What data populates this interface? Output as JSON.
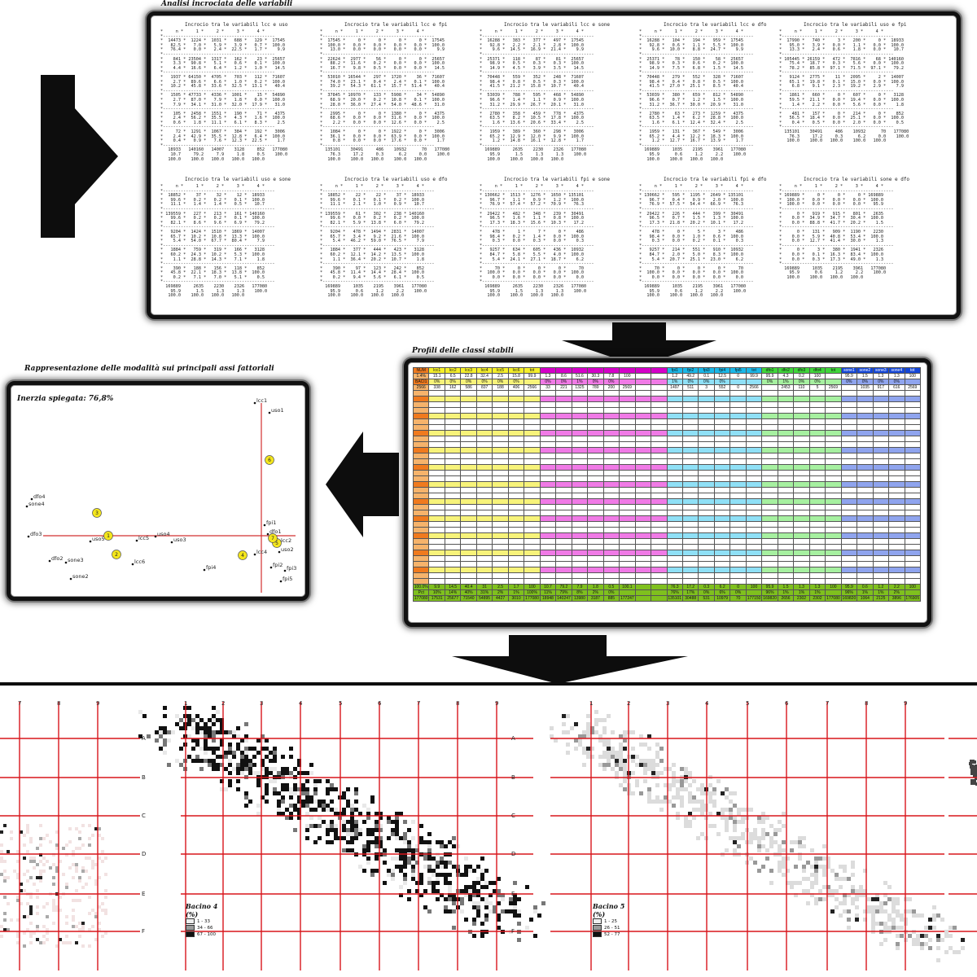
{
  "titles": {
    "crosstab": "Analisi incrociata delle variabili",
    "scatter": "Rappresentazione delle modalità sui principali assi fattoriali",
    "profiles": "Profili delle classi stabili"
  },
  "crosstabs": [
    {
      "title": "Incrocio tra le variabili lcc e uso",
      "text": "*     n *     1 *     2 *     3 *     4 *\n*--------------------------------------------\n*  14473 *  1224 *  1031 *   688 *   129 *  17545\n*   82.5 *   7.0 *   5.9 *   3.9 *   0.7 *  100.0\n*   76.4 *   0.0 *   2.4 *  22.5 *   1.7 *    9.9\n*--------------------------------------------\n*    841 * 23504 *  1317 *   162 *    23 *  25657\n*    3.3 *  90.8 *   5.1 *   0.6 *   0.1 *  100.0\n*    4.4 *  16.6 *   6.4 *   1.2 *   1.0 *   14.5\n*--------------------------------------------\n*   1937 * 64150 *  4705 *   703 *   112 *  71607\n*    2.7 *  89.6 *   6.6 *   1.0 *   0.2 *  100.0\n*   10.2 *  45.8 *  33.6 *  32.5 *  13.1 *   40.4\n*--------------------------------------------\n*   1505 * 47733 *  4336 *  1001 *    15 *  54890\n*    2.7 *  87.0 *   7.9 *   1.8 *   0.0 *  100.0\n*    7.9 *  34.1 *  31.0 *  32.0 *  17.9 *   31.0\n*--------------------------------------------\n*    105 *  2458 *  1551 *   190 *    71 *   4375\n*    2.4 *  56.2 *  35.5 *   4.3 *   1.6 *  100.0\n*    0.6 *   1.8 *  11.1 *   6.1 *   8.3 *    2.5\n*--------------------------------------------\n*     72 *  1291 *  1067 *   384 *   192 *   3006\n*    2.4 *  42.9 *  35.5 *  12.8 *   6.4 *  100.0\n*    0.4 *   0.9 *   7.6 *  12.3 *  22.5 *    1.7\n*--------------------------------------------\n   18933   140160   14007    3128     852   177080\n    10.7     79.2     7.9     1.8     0.5    100.0\n   100.0    100.0   100.0   100.0   100.0"
    },
    {
      "title": "Incrocio tra le variabili lcc e fpi",
      "text": "*     n *     1 *     2 *     3 *     4 *\n*--------------------------------------------\n*  17545 *     0 *     0 *     0 *     0 *  17545\n*  100.0 *   0.0 *   0.0 *   0.0 *   0.0 *  100.0\n*   13.0 *   0.0 *   0.0 *   0.0 *   0.0 *    9.9\n*--------------------------------------------\n*  22624 *  2977 *    56 *     0 *     0 *  25657\n*   88.2 *  11.6 *   0.2 *   0.0 *   0.0 *  100.0\n*   16.7 *   9.8 *   0.5 *   0.0 *   0.0 *   14.5\n*--------------------------------------------\n*  53010 * 16544 *   297 *  1720 *    36 *  71607\n*   74.0 *  23.1 *   0.4 *   2.4 *   0.1 *  100.0\n*   39.2 *  54.3 *  61.1 *  15.7 *  51.4 *   40.4\n*--------------------------------------------\n*  37845 * 10970 *   133 *  5908 *    34 *  54890\n*   68.9 *  20.0 *   0.2 *  10.8 *   0.1 *  100.0\n*   28.0 *  36.0 *  27.4 *  54.0 *  48.6 *   31.0\n*--------------------------------------------\n*   2995 *     0 *     0 *  1380 *     0 *   4375\n*   68.6 *   0.0 *   0.0 *  31.6 *   0.0 *  100.0\n*    2.2 *   0.0 *   0.0 *  12.6 *   0.0 *    2.5\n*--------------------------------------------\n*   1084 *     0 *     0 *  1922 *     0 *   3006\n*   36.1 *   0.0 *   0.0 *  63.9 *   0.0 *  100.0\n*    0.8 *   0.0 *   0.0 *  17.6 *   0.0 *    1.7\n*--------------------------------------------\n  135101    30491     486    10932      70   177080\n    76.3     17.2     0.3      6.2     0.0    100.0\n   100.0    100.0   100.0    100.0   100.0"
    },
    {
      "title": "Incrocio tra le variabili lcc e sone",
      "text": "*     n *     1 *     2 *     3 *     4 *\n*--------------------------------------------\n*  16288 *   383 *   377 *   497 *  17545\n*   92.8 *   2.2 *   2.1 *   2.8 *  100.0\n*    9.6 *  14.5 *  16.9 *  21.4 *    9.9\n*--------------------------------------------\n*  25371 *   118 *    87 *    81 *  25657\n*   98.9 *   0.5 *   0.3 *   0.3 *  100.0\n*   14.9 *   4.5 *   3.9 *   3.5 *   14.5\n*--------------------------------------------\n*  70448 *   559 *   352 *   248 *  71607\n*   98.4 *   0.8 *   0.5 *   0.3 *  100.0\n*   41.5 *  21.2 *  15.8 *  10.7 *   40.4\n*--------------------------------------------\n*  53039 *   788 *   595 *   468 *  54890\n*   96.6 *   1.4 *   1.1 *   0.9 *  100.0\n*   31.2 *  29.9 *  26.7 *  20.1 *   31.0\n*--------------------------------------------\n*   2780 *   358 *   459 *   778 *   4375\n*   63.5 *   8.2 *  10.5 *  17.8 *  100.0\n*    1.6 *  13.6 *  20.6 *  33.4 *    2.5\n*--------------------------------------------\n*   1959 *   389 *   360 *   298 *   3006\n*   65.2 *  12.9 *  12.0 *   9.9 *  100.0\n*    1.2 *  14.8 *  16.1 *  12.8 *    1.7\n*--------------------------------------------\n  169889     2635    2230    2326   177080\n    95.9      1.5     1.3     1.3    100.0\n   100.0    100.0   100.0   100.0"
    },
    {
      "title": "Incrocio tra le variabili lcc e dfo",
      "text": "*     n *     1 *     2 *     3 *     4 *\n*--------------------------------------------\n*  16288 *   104 *   194 *   959 *  17545\n*   92.8 *   0.6 *   1.1 *   5.5 *  100.0\n*    9.6 *  10.0 *   8.8 *  24.7 *    9.9\n*--------------------------------------------\n*  25371 *    78 *   150 *    58 *  25657\n*   98.9 *   0.3 *   0.6 *   0.2 *  100.0\n*   14.9 *   7.5 *   6.8 *   1.5 *   14.5\n*--------------------------------------------\n*  70448 *   279 *   552 *   328 *  71607\n*   98.4 *   0.4 *   0.8 *   0.5 *  100.0\n*   41.5 *  27.0 *  25.1 *   8.5 *   40.4\n*--------------------------------------------\n*  53039 *   380 *   659 *   812 *  54890\n*   96.6 *   0.7 *   1.2 *   1.5 *  100.0\n*   31.2 *  36.7 *  30.0 *  20.9 *   31.0\n*--------------------------------------------\n*   2780 *    63 *   273 *  1259 *   4375\n*   63.5 *   1.4 *   6.2 *  28.8 *  100.0\n*    1.6 *   6.1 *  12.4 *  32.4 *    2.5\n*--------------------------------------------\n*   1959 *   131 *   367 *   549 *   3006\n*   65.2 *   4.4 *  12.2 *  18.3 *  100.0\n*    1.2 *  12.7 *  16.7 *  13.9 *    1.7\n*--------------------------------------------\n  169889     1035    2195    3961   177080\n    95.9      0.6     1.2     2.2    100.0\n   100.0    100.0   100.0   100.0"
    },
    {
      "title": "Incrocio tra le variabili uso e fpi",
      "text": "*     n *     1 *     2 *     3 *     4 *\n*--------------------------------------------\n*  17990 *   740 *     3 *   200 *     0 *  18933\n*   95.0 *   3.9 *   0.0 *   1.1 *   0.0 *  100.0\n*   13.3 *   2.4 *   0.6 *   1.8 *   0.0 *   10.7\n*--------------------------------------------\n* 105445 * 26159 *   472 *  7816 *    68 * 140160\n*   75.4 *  18.7 *   0.3 *   5.6 *   0.0 *  100.0\n*   78.2 *  85.8 *  97.1 *  71.5 *  97.1 *   79.2\n*--------------------------------------------\n*   9124 *  2775 *    11 *  2095 *     2 *  14007\n*   65.1 *  19.8 *   0.1 *  15.0 *   0.0 *  100.0\n*    6.8 *   9.1 *   2.3 *  19.2 *   2.9 *    7.9\n*--------------------------------------------\n*   1861 *   660 *     0 *   607 *     0 *   3128\n*   59.5 *  21.1 *   0.0 *  19.4 *   0.0 *  100.0\n*    1.4 *   2.2 *   0.0 *   5.6 *   0.0 *    1.8\n*--------------------------------------------\n*    481 *   157 *     0 *   214 *     0 *    852\n*   56.5 *  18.4 *   0.0 *  25.1 *   0.0 *  100.0\n*    0.4 *   0.5 *   0.0 *   2.0 *   0.0 *    0.5\n*--------------------------------------------\n  135101    30491     486    10932      70   177080\n    76.3     17.2     0.3      6.2     0.0    100.0\n   100.0    100.0   100.0    100.0   100.0"
    },
    {
      "title": "Incrocio tra le variabili uso e sone",
      "text": "*     n *     1 *     2 *     3 *     4 *\n*--------------------------------------------\n*  18852 *    37 *    32 *    12 *  18933\n*   99.6 *   0.2 *   0.2 *   0.1 *  100.0\n*   11.1 *   1.4 *   1.4 *   0.5 *   10.7\n*--------------------------------------------\n* 139559 *   227 *   213 *   161 * 140160\n*   99.6 *   0.2 *   0.2 *   0.1 *  100.0\n*   82.1 *   8.6 *   9.6 *   6.9 *   79.2\n*--------------------------------------------\n*   9204 *  1424 *  1510 *  1869 *  14007\n*   65.7 *  10.2 *  10.8 *  13.3 *  100.0\n*    5.4 *  54.0 *  67.7 *  80.4 *    7.9\n*--------------------------------------------\n*   1884 *   759 *   319 *   166 *   3128\n*   60.2 *  24.3 *  10.2 *   5.3 *  100.0\n*    1.1 *  28.8 *  14.3 *   7.1 *    1.8\n*--------------------------------------------\n*    390 *   188 *   156 *   118 *    852\n*   45.8 *  22.1 *  18.3 *  13.8 *  100.0\n*    0.2 *   7.1 *   7.0 *   5.1 *    0.5\n*--------------------------------------------\n  169889     2635    2230    2326   177080\n    95.9      1.5     1.3     1.3    100.0\n   100.0    100.0   100.0   100.0"
    },
    {
      "title": "Incrocio tra le variabili uso e dfo",
      "text": "*     n *     1 *     2 *     3 *     4 *\n*--------------------------------------------\n*  18852 *    22 *    22 *    37 *  18933\n*   99.6 *   0.1 *   0.1 *   0.2 *  100.0\n*   11.1 *   2.1 *   1.0 *   0.9 *   10.7\n*--------------------------------------------\n* 139559 *    61 *   302 *   238 * 140160\n*   99.6 *   0.0 *   0.2 *   0.2 *  100.0\n*   82.1 *   5.9 *  13.8 *   6.0 *   79.2\n*--------------------------------------------\n*   9204 *   478 *  1494 *  2831 *  14007\n*   65.7 *   3.4 *   9.2 *  21.6 *  100.0\n*    5.4 *  46.2 *  59.0 *  76.5 *    7.9\n*--------------------------------------------\n*   1884 *   377 *   444 *   423 *   3128\n*   60.2 *  12.1 *  14.2 *  13.5 *  100.0\n*    1.1 *  36.4 *  20.2 *  10.7 *    1.8\n*--------------------------------------------\n*    390 *    97 *   123 *   242 *    852\n*   45.8 *  11.4 *  14.4 *  28.4 *  100.0\n*    0.2 *   9.4 *   5.6 *   6.1 *    0.5\n*--------------------------------------------\n  169889     1035    2195    3961   177080\n    95.9      0.6     1.2     2.2    100.0\n   100.0    100.0   100.0   100.0"
    },
    {
      "title": "Incrocio tra le variabili fpi e sone",
      "text": "*     n *     1 *     2 *     3 *     4 *\n*--------------------------------------------\n* 130662 *  1513 *  1276 *  1650 * 135101\n*   96.7 *   1.1 *   0.9 *   1.2 *  100.0\n*   76.9 *  57.4 *  57.2 *  70.9 *   76.3\n*--------------------------------------------\n*  29422 *   482 *   348 *   239 *  30491\n*   96.5 *   1.6 *   1.1 *   0.8 *  100.0\n*   17.3 *  18.3 *  15.6 *  10.3 *   17.2\n*--------------------------------------------\n*    478 *     1 *     7 *     0 *    486\n*   98.4 *   0.2 *   1.4 *   0.0 *  100.0\n*    0.3 *   0.0 *   0.3 *   0.0 *    0.3\n*--------------------------------------------\n*   9257 *   634 *   605 *   436 *  10932\n*   84.7 *   5.8 *   5.5 *   4.0 *  100.0\n*    5.4 *  24.1 *  27.1 *  18.7 *    6.2\n*--------------------------------------------\n*     70 *     0 *     0 *     0 *     70\n*  100.0 *   0.0 *   0.0 *   0.0 *  100.0\n*    0.0 *   0.0 *   0.0 *   0.0 *    0.0\n*--------------------------------------------\n  169889     2635    2230    2326   177080\n    95.9      1.5     1.3     1.3    100.0\n   100.0    100.0   100.0   100.0"
    },
    {
      "title": "Incrocio tra le variabili fpi e dfo",
      "text": "*     n *     1 *     2 *     3 *     4 *\n*--------------------------------------------\n* 130662 *   595 *  1195 *  2649 * 135101\n*   96.7 *   0.4 *   0.9 *   2.0 *  100.0\n*   76.9 *  57.5 *  54.4 *  66.9 *   76.3\n*--------------------------------------------\n*  29422 *   226 *   444 *   399 *  30491\n*   96.5 *   0.7 *   1.5 *   1.3 *  100.0\n*   17.3 *  21.8 *  20.2 *  10.1 *   17.2\n*--------------------------------------------\n*    478 *     0 *     5 *     3 *    486\n*   98.4 *   0.0 *   1.0 *   0.6 *  100.0\n*    0.3 *   0.0 *   0.2 *   0.1 *    0.3\n*--------------------------------------------\n*   9257 *   214 *   551 *   910 *  10932\n*   84.7 *   2.0 *   5.0 *   8.3 *  100.0\n*    5.4 *  20.7 *  25.1 *  23.0 *    6.2\n*--------------------------------------------\n*     70 *     0 *     0 *     0 *     70\n*  100.0 *   0.0 *   0.0 *   0.0 *  100.0\n*    0.0 *   0.0 *   0.0 *   0.0 *    0.0\n*--------------------------------------------\n  169889     1035    2195    3961   177080\n    95.9      0.6     1.2     2.2    100.0\n   100.0    100.0   100.0   100.0"
    },
    {
      "title": "Incrocio tra le variabili sone e dfo",
      "text": "*     n *     1 *     2 *     3 *     4 *\n*--------------------------------------------\n* 169889 *     0 *     0 *     0 * 169889\n*  100.0 *   0.0 *   0.0 *   0.0 *  100.0\n*  100.0 *   0.0 *   0.0 *   0.0 *   95.9\n*--------------------------------------------\n*      0 *   919 *   915 *   801 *   2635\n*    0.0 *  34.9 *  34.7 *  30.4 *  100.0\n*    0.0 *  88.8 *  41.7 *  20.2 *    1.5\n*--------------------------------------------\n*      0 *   131 *   909 *  1190 *   2230\n*    0.0 *   5.9 *  40.8 *  53.4 *  100.0\n*    0.0 *  12.7 *  41.4 *  30.0 *    1.3\n*--------------------------------------------\n*      0 *     3 *   380 *  1941 *   2326\n*    0.0 *   0.1 *  16.3 *  83.4 *  100.0\n*    0.0 *   0.3 *  17.3 *  49.0 *    1.3\n*--------------------------------------------\n  169889     1035    2195    3961   177080\n    95.9      0.6     1.2     2.2    100.0\n   100.0    100.0   100.0   100.0"
    }
  ],
  "scatter": {
    "inertia_label": "Inerzia spiegata: 76,8%",
    "labels": {
      "lcc1": "lcc1",
      "uso1": "uso1",
      "dfo4": "dfo4",
      "sone4": "sone4",
      "fpi1": "fpi1",
      "dfo1": "dfo1",
      "dfo3": "dfo3",
      "uso5": "uso5",
      "lcc5": "lcc5",
      "uso4": "uso4",
      "uso3": "uso3",
      "lcc2": "lcc2",
      "uso2": "uso2",
      "lcc4": "lcc4",
      "dfo2": "dfo2",
      "sone3": "sone3",
      "lcc6": "lcc6",
      "sone2": "sone2",
      "fpi4": "fpi4",
      "fpi2": "fpi2",
      "fpi3": "fpi3",
      "fpi5": "fpi5"
    },
    "circles": [
      "1",
      "2",
      "3",
      "4",
      "5",
      "6",
      "7"
    ]
  },
  "profiles": {
    "header": [
      "NUM",
      "lcc1",
      "lcc2",
      "lcc3",
      "lcc4",
      "lcc5",
      "lcc6",
      "tot",
      "",
      "",
      "",
      "",
      "",
      "",
      "",
      "",
      "fpi1",
      "fpi2",
      "fpi3",
      "fpi4",
      "fpi5",
      "tot",
      "dfo1",
      "dfo2",
      "dfo3",
      "dfo4",
      "tot",
      "sone1",
      "sone2",
      "sone3",
      "sone4",
      "tot"
    ],
    "first_rows": [
      [
        "1.4%",
        "15.1",
        "6.5",
        "22.8",
        "32.4",
        "2.5",
        "15.8",
        "99.9",
        "1.3",
        "8.6",
        "51.6",
        "30.3",
        "7.8",
        "100",
        "",
        "",
        "1.2",
        "49.2",
        "0.1",
        "12.5",
        "0",
        "99.9",
        "95.9",
        "4.3",
        "0.2",
        "100",
        "",
        "95.9",
        "1.5",
        "1.3",
        "1.3",
        "100"
      ],
      [
        "BACI1",
        "0%",
        "0%",
        "0%",
        "0%",
        "0%",
        "0%",
        "",
        "0%",
        "0%",
        "1%",
        "0%",
        "0%",
        "",
        "",
        "",
        "1%",
        "0%",
        "0%",
        "0%",
        "",
        "",
        "0%",
        "1%",
        "0%",
        "0%",
        "",
        "0%",
        "0%",
        "0%",
        "0%",
        ""
      ],
      [
        "2566",
        "338",
        "162",
        "586",
        "837",
        "188",
        "406",
        "2566",
        "33",
        "221",
        "1325",
        "789",
        "200",
        "2569",
        "",
        "",
        "1497",
        "511",
        "3",
        "552",
        "0",
        "2566",
        "",
        "2453",
        "110",
        "5",
        "2569",
        "",
        "1035",
        "917",
        "616",
        "2569"
      ]
    ],
    "last_rows": [
      [
        "100.0%",
        "9.9",
        "14.5",
        "40.4",
        "31",
        "2.5",
        "1.7",
        "100",
        "10.7",
        "79.2",
        "7.9",
        "1.8",
        "0.5",
        "100.1",
        "",
        "",
        "76.3",
        "17.2",
        "0.3",
        "6.2",
        "0",
        "100",
        "95.9",
        "1.5",
        "1.3",
        "1.3",
        "100",
        "95.9",
        "0.6",
        "1.2",
        "2.2",
        "100"
      ],
      [
        "Pct",
        "10%",
        "14%",
        "40%",
        "31%",
        "2%",
        "1%",
        "100%",
        "11%",
        "79%",
        "8%",
        "2%",
        "0%",
        "",
        "",
        "",
        "76%",
        "17%",
        "0%",
        "6%",
        "0%",
        "",
        "96%",
        "1%",
        "1%",
        "1%",
        "",
        "96%",
        "1%",
        "1%",
        "2%",
        ""
      ],
      [
        "177080",
        "17531",
        "25677",
        "71540",
        "54895",
        "4427",
        "3010",
        "177080",
        "18948",
        "140247",
        "13980",
        "3187",
        "885",
        "177247",
        "",
        "",
        "135101",
        "30488",
        "531",
        "10979",
        "70",
        "177150",
        "169820",
        "2656",
        "2302",
        "2302",
        "177080",
        "169820",
        "1064",
        "2125",
        "3896",
        "176905"
      ]
    ]
  },
  "maps": {
    "row_labels": [
      "A",
      "B",
      "C",
      "D",
      "E",
      "F"
    ],
    "col_labels_main": [
      "1",
      "2",
      "3",
      "4",
      "5",
      "6",
      "7",
      "8",
      "9"
    ],
    "col_labels_left": [
      "7",
      "8",
      "9"
    ],
    "legend4": {
      "title": "Bacino 4",
      "unit": "(%)",
      "items": [
        "1 - 33",
        "34 - 66",
        "67 - 100"
      ]
    },
    "legend5": {
      "title": "Bacino 5",
      "unit": "(%)",
      "items": [
        "1 - 25",
        "26 - 51",
        "52 - 77"
      ]
    }
  },
  "colors": {
    "frame": "#111111",
    "map_grid": "#d8161c",
    "axis": "#d23030",
    "circle": "#f4e61c",
    "orange": "#f07a1e",
    "yellow": "#f5ef2a",
    "magenta": "#d400c8",
    "cyan": "#1ab8e8",
    "green": "#3fd63a",
    "blue": "#1446d6"
  }
}
